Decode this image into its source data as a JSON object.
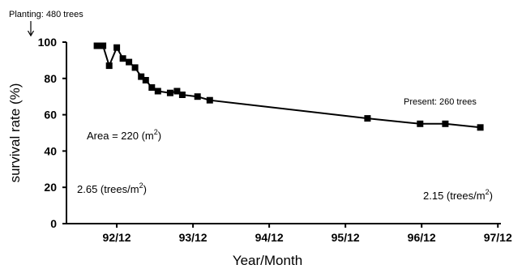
{
  "chart_data": {
    "type": "line",
    "xlabel": "Year/Month",
    "ylabel": "survival rate (%)",
    "ylim": [
      0,
      100
    ],
    "yticks": [
      "0",
      "20",
      "40",
      "60",
      "80",
      "100"
    ],
    "xlim": [
      1992.3,
      1998.0
    ],
    "xticks": [
      {
        "value": 1992.96,
        "label": "92/12"
      },
      {
        "value": 1993.96,
        "label": "93/12"
      },
      {
        "value": 1994.96,
        "label": "94/12"
      },
      {
        "value": 1995.96,
        "label": "95/12"
      },
      {
        "value": 1996.96,
        "label": "96/12"
      },
      {
        "value": 1997.96,
        "label": "97/12"
      }
    ],
    "grid": false,
    "series": [
      {
        "x": [
          1992.7,
          1992.78,
          1992.86,
          1992.96,
          1993.04,
          1993.12,
          1993.2,
          1993.28,
          1993.34,
          1993.42,
          1993.5,
          1993.66,
          1993.75,
          1993.82,
          1994.02,
          1994.18,
          1996.25,
          1996.94,
          1997.27,
          1997.73
        ],
        "y": [
          98,
          98,
          87,
          97,
          91,
          89,
          86,
          81,
          79,
          75,
          73,
          72,
          73,
          71,
          70,
          68,
          58,
          55,
          55,
          53
        ]
      }
    ],
    "annotations": {
      "planting": "Planting: 480 trees",
      "present": "Present: 260 trees",
      "area_text": "Area = 220 (m",
      "area_sup": "2",
      "area_end": ")",
      "density_left_text": "2.65 (trees/m",
      "density_left_sup": "2",
      "density_left_end": ")",
      "density_right_text": "2.15 (trees/m",
      "density_right_sup": "2",
      "density_right_end": ")"
    }
  }
}
